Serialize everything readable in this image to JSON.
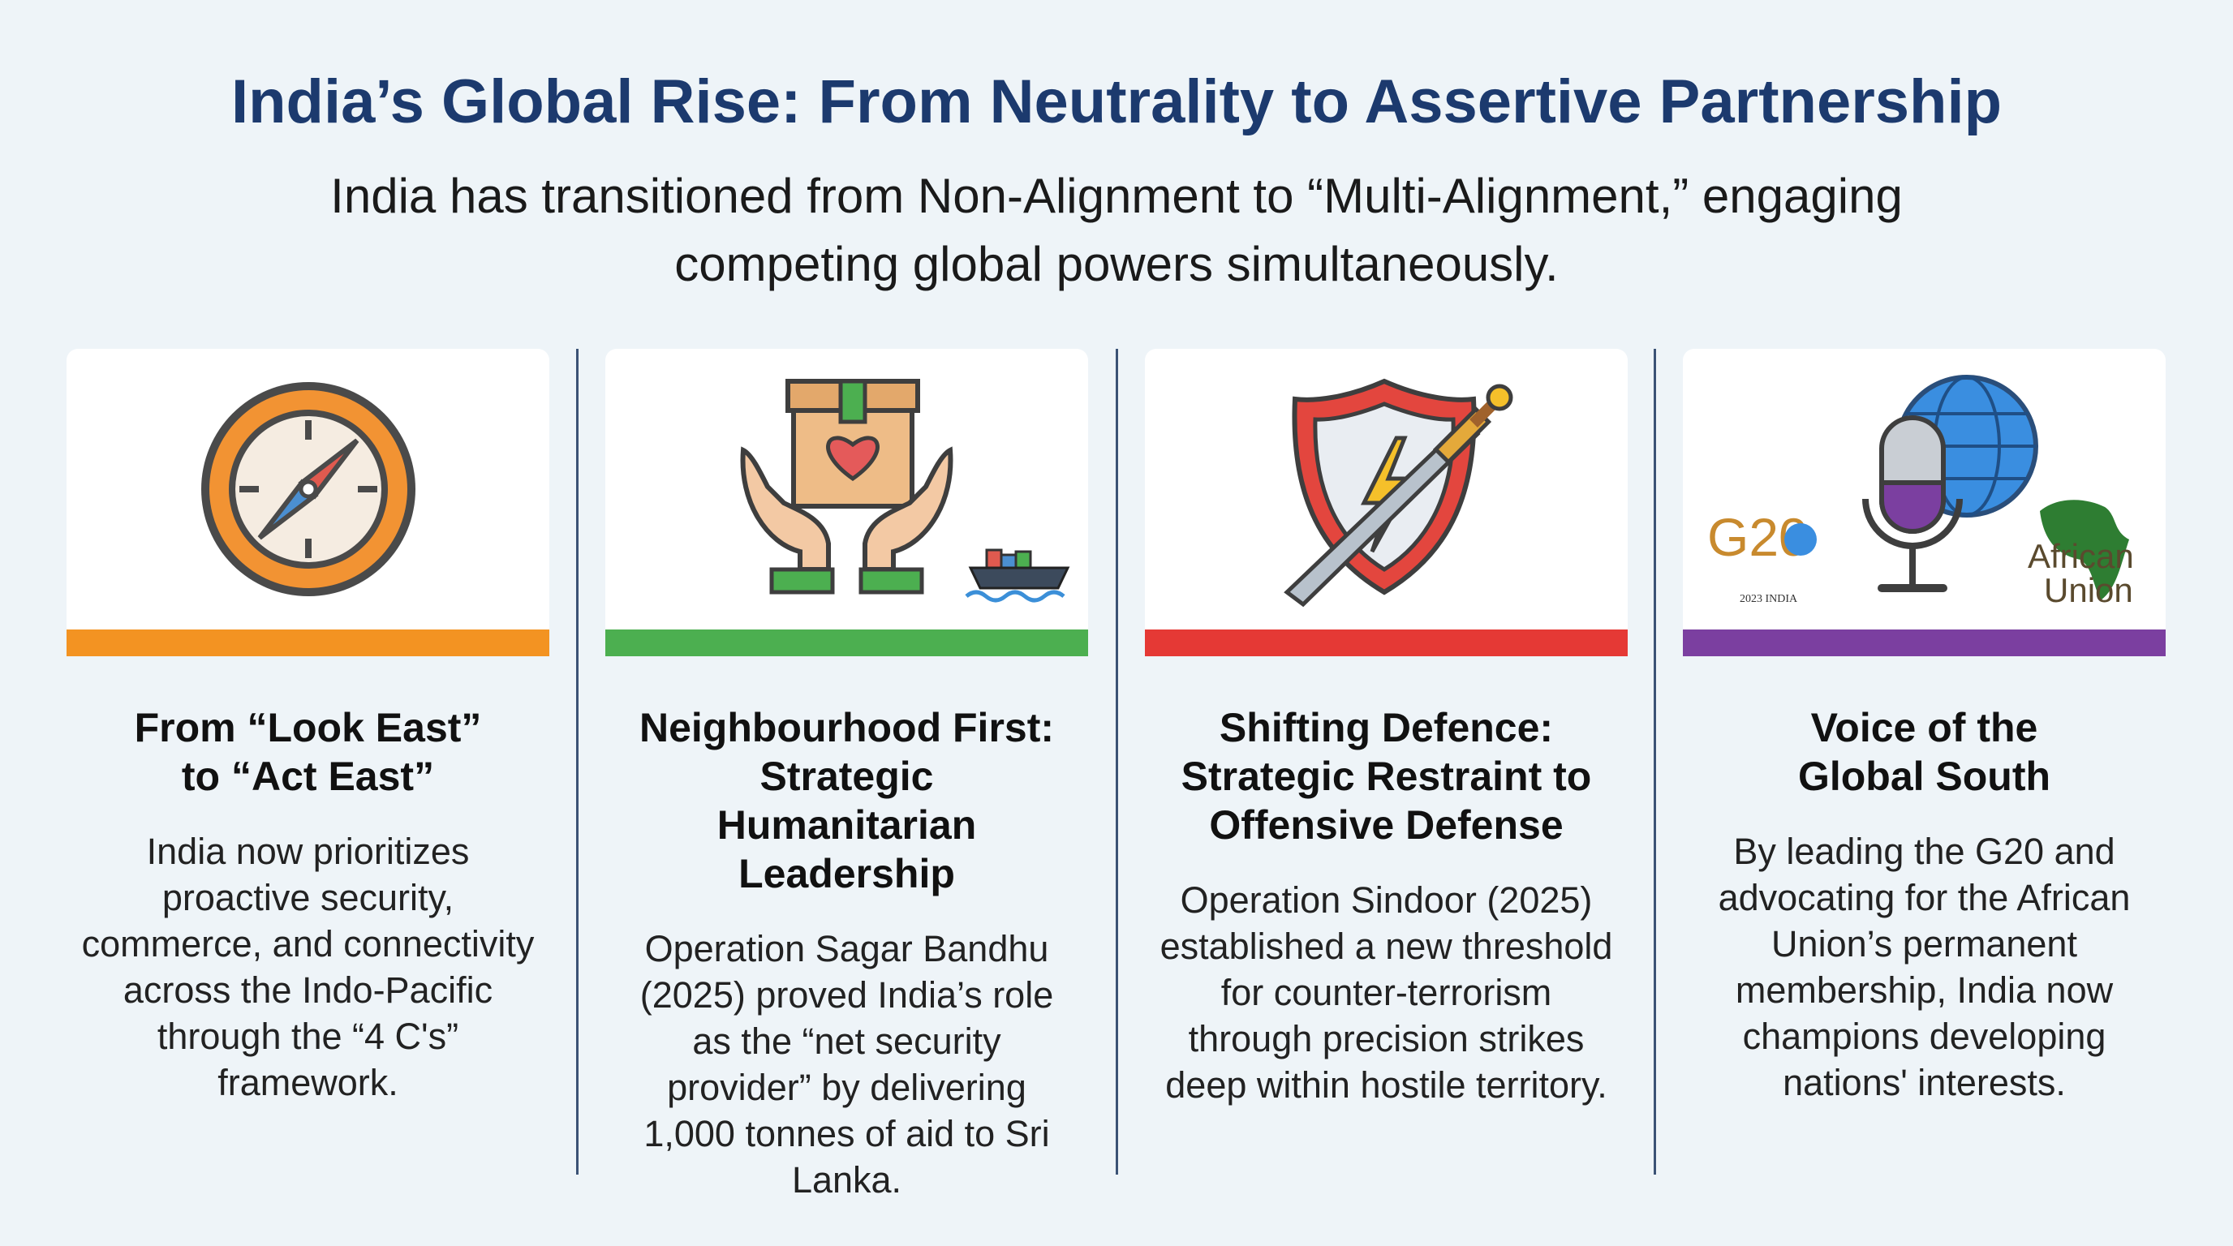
{
  "header": {
    "title": "India’s Global Rise: From Neutrality to Assertive Partnership",
    "subtitle": "India has transitioned from Non-Alignment to “Multi-Alignment,” engaging competing global powers simultaneously."
  },
  "cards": [
    {
      "title": "From “Look East”\nto “Act East”",
      "body": "India now prioritizes proactive security, commerce, and connectivity across the Indo-Pacific through the “4 C's” framework."
    },
    {
      "title": "Neighbourhood First:\nStrategic\nHumanitarian\nLeadership",
      "body": "Operation Sagar Bandhu (2025) proved India’s role as the “net security provider” by delivering 1,000 tonnes of aid to Sri Lanka."
    },
    {
      "title": "Shifting Defence:\nStrategic Restraint to\nOffensive Defense",
      "body": "Operation Sindoor (2025) established a new threshold for counter-terrorism through precision strikes deep within hostile territory."
    },
    {
      "title": "Voice of the\nGlobal South",
      "body": "By leading the G20 and advocating for the African Union’s permanent membership, India now champions developing nations' interests.",
      "logos": [
        "G20",
        "2023 INDIA",
        "African",
        "Union"
      ]
    }
  ]
}
